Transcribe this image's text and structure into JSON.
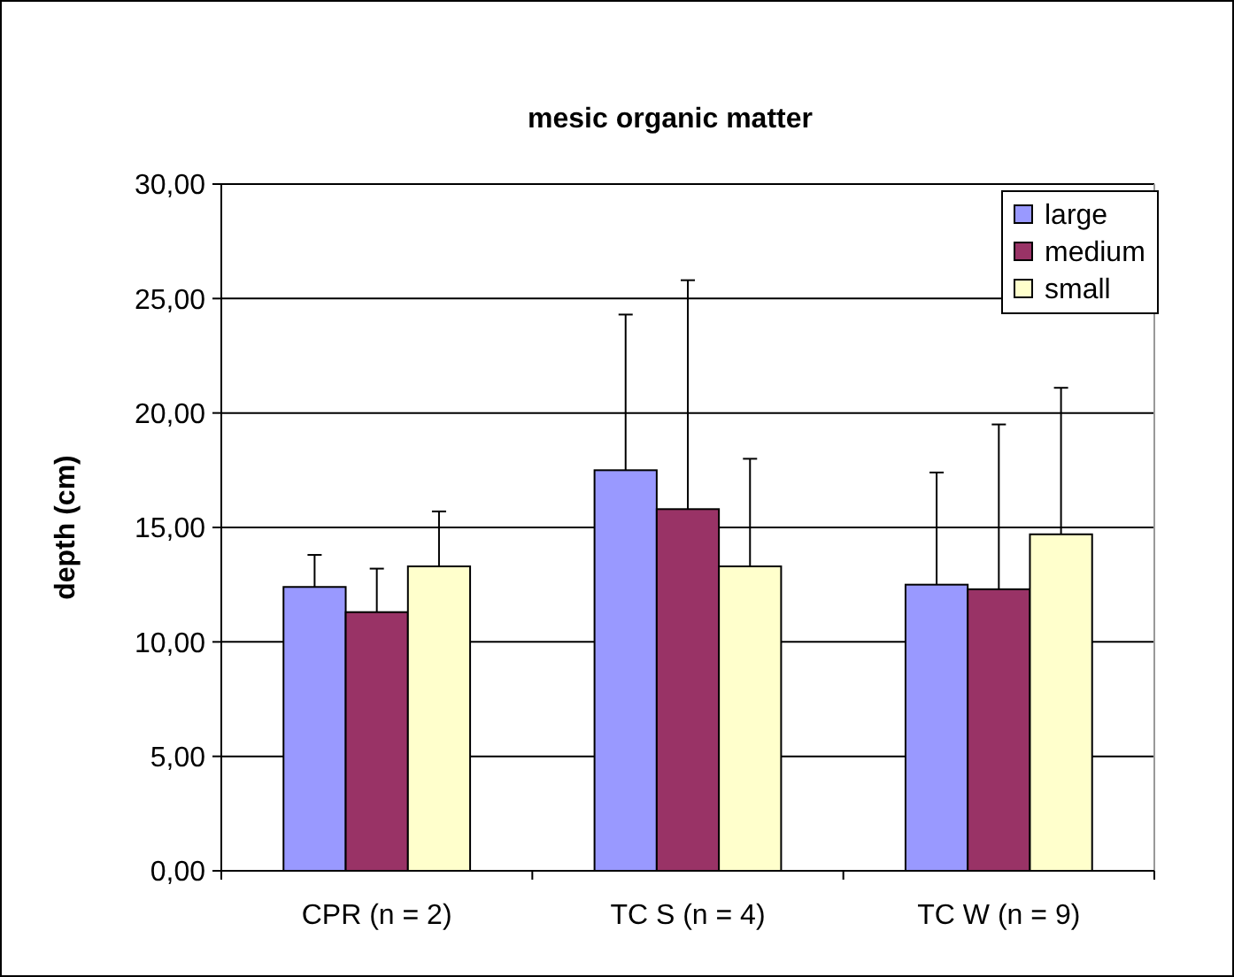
{
  "chart_data": {
    "type": "bar",
    "title": "mesic organic matter",
    "ylabel": "depth (cm)",
    "categories": [
      "CPR (n = 2)",
      "TC S (n = 4)",
      "TC W (n = 9)"
    ],
    "series": [
      {
        "name": "large",
        "color": "#9999ff",
        "values": [
          12.4,
          17.5,
          12.5
        ],
        "errors": [
          [
            12.4,
            13.8
          ],
          [
            17.5,
            24.3
          ],
          [
            12.5,
            17.4
          ]
        ]
      },
      {
        "name": "medium",
        "color": "#993366",
        "values": [
          11.3,
          15.8,
          12.3
        ],
        "errors": [
          [
            11.3,
            13.2
          ],
          [
            15.8,
            25.8
          ],
          [
            12.3,
            19.5
          ]
        ]
      },
      {
        "name": "small",
        "color": "#ffffcc",
        "values": [
          13.3,
          13.3,
          14.7
        ],
        "errors": [
          [
            13.3,
            15.7
          ],
          [
            13.3,
            18.0
          ],
          [
            14.7,
            21.1
          ]
        ]
      }
    ],
    "ylim": [
      0,
      30
    ],
    "yticks": [
      {
        "value": 0,
        "label": "0,00"
      },
      {
        "value": 5,
        "label": "5,00"
      },
      {
        "value": 10,
        "label": "10,00"
      },
      {
        "value": 15,
        "label": "15,00"
      },
      {
        "value": 20,
        "label": "20,00"
      },
      {
        "value": 25,
        "label": "25,00"
      },
      {
        "value": 30,
        "label": "30,00"
      }
    ],
    "grid": "y",
    "legend": "top right"
  }
}
